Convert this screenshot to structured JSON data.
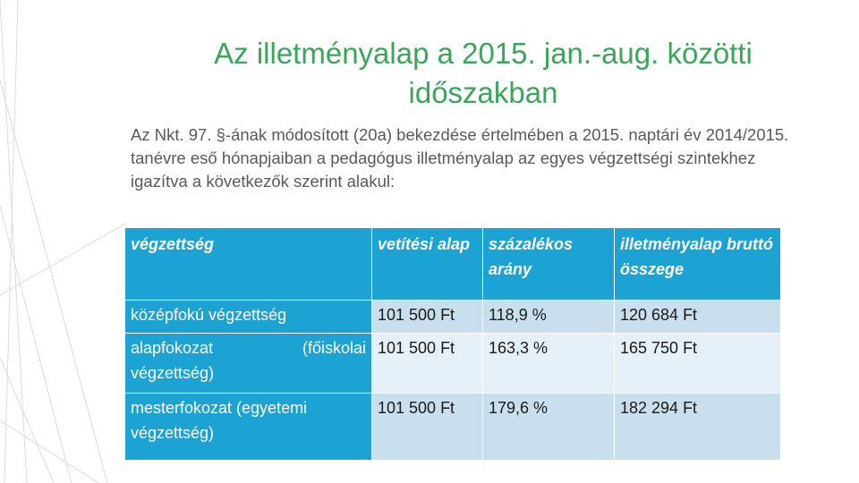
{
  "title": {
    "line1": "Az illetményalap a 2015. jan.-aug. közötti",
    "line2": "időszakban"
  },
  "body": {
    "paragraph": "Az Nkt. 97. §-ának módosított (20a) bekezdése értelmében a 2015. naptári év 2014/2015. tanévre eső hónapjaiban a pedagógus illetményalap az egyes végzettségi szintekhez igazítva a következők szerint alakul:"
  },
  "table": {
    "headers": [
      "végzettség",
      "vetítési alap",
      "százalékos arány",
      "illetményalap bruttó összege"
    ],
    "rows": [
      {
        "label": "középfokú végzettség",
        "base": "101 500 Ft",
        "percent": "118,9 %",
        "amount": "120 684 Ft"
      },
      {
        "label": "alapfokozat (főiskolai végzettség)",
        "base": "101 500 Ft",
        "percent": "163,3 %",
        "amount": "165 750 Ft"
      },
      {
        "label": "mesterfokozat (egyetemi végzettség)",
        "base": "101 500 Ft",
        "percent": "179,6 %",
        "amount": "182 294 Ft"
      }
    ]
  },
  "colors": {
    "title": "#3aa65a",
    "header_fill": "#1ca3d4",
    "row_fill_dark": "#c9dfee",
    "row_fill_light": "#e6f0f8",
    "decoration": "#dcdcdc"
  }
}
